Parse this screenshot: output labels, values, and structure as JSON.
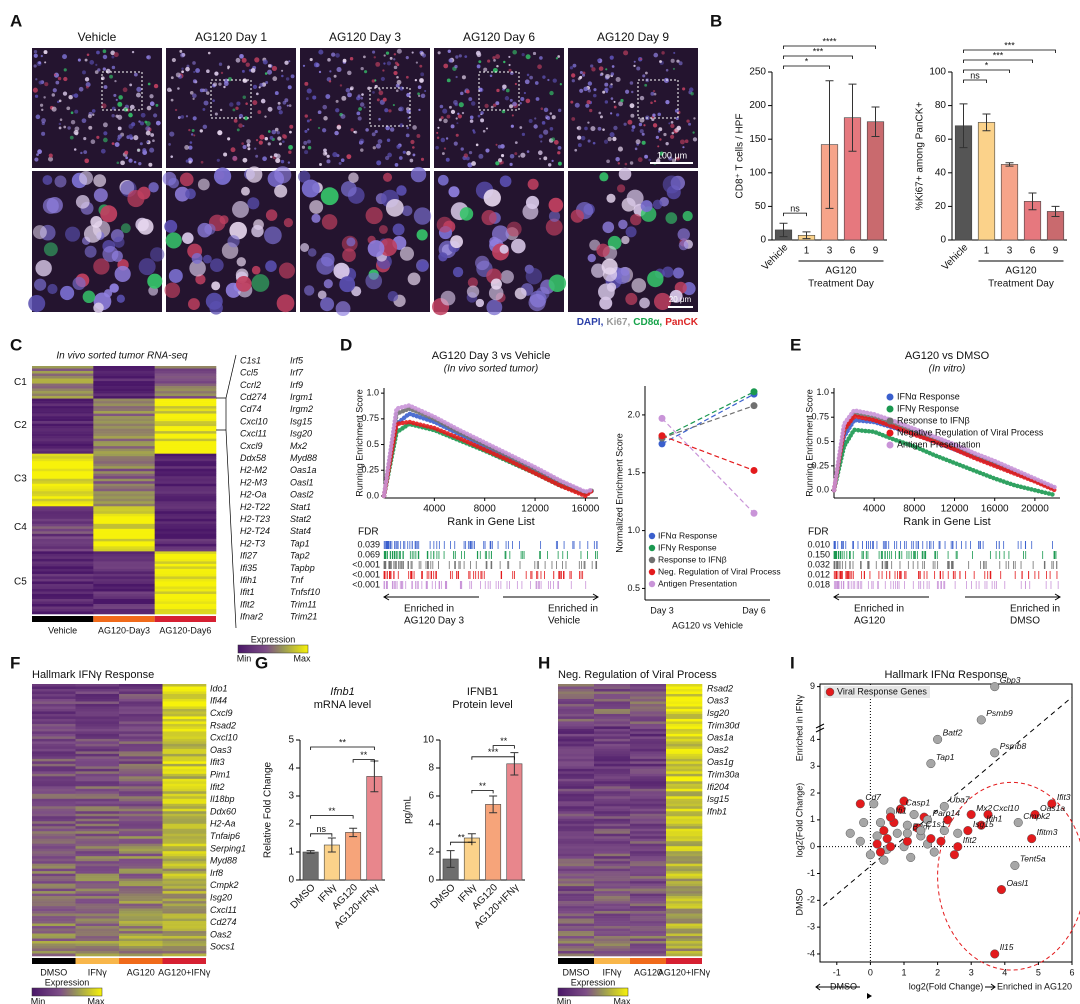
{
  "panel_labels": [
    "A",
    "B",
    "C",
    "D",
    "E",
    "F",
    "G",
    "H",
    "I"
  ],
  "microscopy": {
    "columns": [
      "Vehicle",
      "AG120 Day 1",
      "AG120 Day 3",
      "AG120 Day 6",
      "AG120 Day 9"
    ],
    "scale_top": "100 μm",
    "scale_bottom": "20 μm",
    "stains": [
      "DAPI,",
      "Ki67,",
      "CD8α,",
      "PanCK"
    ]
  },
  "heatmap_c": {
    "title": "In vivo sorted tumor RNA-seq",
    "clusters": [
      "C1",
      "C2",
      "C3",
      "C4",
      "C5"
    ],
    "genes_left": [
      "C1s1",
      "Ccl5",
      "Ccrl2",
      "Cd274",
      "Cd74",
      "Cxcl10",
      "Cxcl11",
      "Cxcl9",
      "Ddx58",
      "H2-M2",
      "H2-M3",
      "H2-Oa",
      "H2-T22",
      "H2-T23",
      "H2-T24",
      "H2-T3",
      "Ifi27",
      "Ifi35",
      "Ifih1",
      "Ifit1",
      "Ifit2",
      "Ifnar2"
    ],
    "genes_right": [
      "Irf5",
      "Irf7",
      "Irf9",
      "Irgm1",
      "Irgm2",
      "Isg15",
      "Isg20",
      "Mx2",
      "Myd88",
      "Oas1a",
      "Oasl1",
      "Oasl2",
      "Stat1",
      "Stat2",
      "Stat4",
      "Tap1",
      "Tap2",
      "Tapbp",
      "Tnf",
      "Tnfsf10",
      "Trim11",
      "Trim21"
    ],
    "columns": [
      "Vehicle",
      "AG120-Day3",
      "AG120-Day6"
    ],
    "legend": {
      "title": "Expression",
      "min": "Min",
      "max": "Max"
    }
  },
  "heatmap_f": {
    "title": "Hallmark IFNγ Response",
    "genes": [
      "Ido1",
      "Ifi44",
      "Cxcl9",
      "Rsad2",
      "Cxcl10",
      "Oas3",
      "Ifit3",
      "Pim1",
      "Ifit2",
      "Il18bp",
      "Ddx60",
      "H2-Aa",
      "Tnfaip6",
      "Serping1",
      "Myd88",
      "Irf8",
      "Cmpk2",
      "Isg20",
      "Cxcl11",
      "Cd274",
      "Oas2",
      "Socs1"
    ],
    "columns": [
      "DMSO",
      "IFNγ",
      "AG120",
      "AG120+IFNγ"
    ],
    "legend": {
      "title": "Expression",
      "min": "Min",
      "max": "Max"
    }
  },
  "heatmap_h": {
    "title": "Neg. Regulation of Viral Process",
    "genes": [
      "Rsad2",
      "Oas3",
      "Isg20",
      "Trim30d",
      "Oas1a",
      "Oas2",
      "Oas1g",
      "Trim30a",
      "Ifi204",
      "Isg15",
      "Ifnb1"
    ],
    "columns": [
      "DMSO",
      "IFNγ",
      "AG120",
      "AG120+IFNγ"
    ],
    "legend": {
      "title": "Expression",
      "min": "Min",
      "max": "Max"
    }
  },
  "chart_data": [
    {
      "type": "bar",
      "ylabel": "CD8⁺ T cells / HPF",
      "categories": [
        "Vehicle",
        "1",
        "3",
        "6",
        "9"
      ],
      "values": [
        15,
        7,
        142,
        182,
        176
      ],
      "errors": [
        10,
        5,
        95,
        50,
        22
      ],
      "colors": [
        "#555555",
        "#fbd28a",
        "#f6a48a",
        "#e6787e",
        "#c96a6e"
      ],
      "group_label": "AG120",
      "xlabel": "Treatment Day",
      "significance": [
        "ns",
        "*",
        "***",
        "****"
      ],
      "ylim": [
        0,
        250
      ],
      "yticks": [
        0,
        50,
        100,
        150,
        200,
        250
      ]
    },
    {
      "type": "bar",
      "ylabel": "%Ki67+ among PanCK+",
      "categories": [
        "Vehicle",
        "1",
        "3",
        "6",
        "9"
      ],
      "values": [
        68,
        70,
        45,
        23,
        17
      ],
      "errors": [
        13,
        5,
        1,
        5,
        3
      ],
      "colors": [
        "#555555",
        "#fbd28a",
        "#f6a48a",
        "#e6787e",
        "#c96a6e"
      ],
      "group_label": "AG120",
      "xlabel": "Treatment Day",
      "significance": [
        "ns",
        "*",
        "***",
        "***"
      ],
      "ylim": [
        0,
        100
      ],
      "yticks": [
        0,
        20,
        40,
        60,
        80,
        100
      ]
    },
    {
      "type": "gsea",
      "title": "AG120 Day 3 vs Vehicle",
      "subtitle": "(In vivo sorted tumor)",
      "ylabel": "Running Enrichment Score",
      "xlabel": "Rank in Gene List",
      "x": [
        0,
        1000,
        2000,
        4000,
        6000,
        8000,
        10000,
        12000,
        14000,
        16000,
        16500
      ],
      "series": [
        {
          "color": "#3a5fcd",
          "values": [
            0,
            0.7,
            0.8,
            0.72,
            0.6,
            0.48,
            0.37,
            0.25,
            0.12,
            0.03,
            0.05
          ]
        },
        {
          "color": "#1a9850",
          "values": [
            0,
            0.62,
            0.7,
            0.64,
            0.54,
            0.44,
            0.33,
            0.22,
            0.1,
            0.02,
            0.05
          ]
        },
        {
          "color": "#707070",
          "values": [
            0,
            0.8,
            0.85,
            0.75,
            0.62,
            0.5,
            0.38,
            0.26,
            0.14,
            0.03,
            0.05
          ]
        },
        {
          "color": "#e31a1c",
          "values": [
            0,
            0.7,
            0.72,
            0.66,
            0.56,
            0.45,
            0.34,
            0.22,
            0.1,
            0,
            0.05
          ]
        },
        {
          "color": "#c994d8",
          "values": [
            0,
            0.85,
            0.88,
            0.77,
            0.64,
            0.52,
            0.4,
            0.28,
            0.15,
            0.04,
            0.06
          ]
        }
      ],
      "xlim": [
        0,
        17000
      ],
      "ylim": [
        -0.02,
        1.05
      ],
      "xticks": [
        4000,
        8000,
        12000,
        16000
      ],
      "yticks": [
        {
          "value": 0,
          "label": "0.0"
        },
        0.25,
        0.5,
        0.75,
        {
          "value": 1,
          "label": "1.0"
        }
      ],
      "fdr_label": "FDR",
      "fdr": [
        "0.039",
        "0.069",
        "<0.001",
        "<0.001",
        "<0.001"
      ],
      "left_arrow": [
        "Enriched in",
        "AG120 Day 3"
      ],
      "right_arrow": [
        "Enriched in",
        "Vehicle"
      ]
    },
    {
      "type": "line",
      "ylabel": "Normalized Enrichment Score",
      "categories": [
        "Day 3",
        "Day 6"
      ],
      "xlabel": "AG120 vs Vehicle",
      "series": [
        {
          "name": "IFNα Response",
          "color": "#3a5fcd",
          "values": [
            1.75,
            2.18
          ]
        },
        {
          "name": "IFNγ Response",
          "color": "#1a9850",
          "values": [
            1.8,
            2.2
          ]
        },
        {
          "name": "Response to IFNβ",
          "color": "#707070",
          "values": [
            1.8,
            2.08
          ]
        },
        {
          "name": "Neg. Regulation of Viral Process",
          "color": "#e31a1c",
          "values": [
            1.82,
            1.52
          ]
        },
        {
          "name": "Antigen Presentation",
          "color": "#c994d8",
          "values": [
            1.97,
            1.15
          ]
        }
      ],
      "ylim": [
        0.4,
        2.25
      ],
      "yticks": [
        0.5,
        {
          "value": 1,
          "label": "1.0"
        },
        1.5,
        {
          "value": 2,
          "label": "2.0"
        }
      ]
    },
    {
      "type": "gsea",
      "title": "AG120 vs DMSO",
      "subtitle": "(In vitro)",
      "ylabel": "Running Enrichment Score",
      "xlabel": "Rank in Gene List",
      "x": [
        0,
        1000,
        2000,
        4000,
        6000,
        8000,
        10000,
        12000,
        14000,
        16000,
        18000,
        20000,
        22000
      ],
      "series": [
        {
          "name": "IFNα Response",
          "color": "#3a5fcd",
          "values": [
            0,
            0.55,
            0.72,
            0.7,
            0.64,
            0.58,
            0.5,
            0.42,
            0.34,
            0.26,
            0.18,
            0.1,
            0.02
          ]
        },
        {
          "name": "IFNγ Response",
          "color": "#1a9850",
          "values": [
            0,
            0.45,
            0.62,
            0.6,
            0.52,
            0.45,
            0.36,
            0.28,
            0.2,
            0.12,
            0.05,
            0,
            -0.05
          ]
        },
        {
          "name": "Response to IFNβ",
          "color": "#707070",
          "values": [
            0,
            0.6,
            0.78,
            0.74,
            0.67,
            0.6,
            0.52,
            0.44,
            0.35,
            0.27,
            0.19,
            0.1,
            0.01
          ]
        },
        {
          "name": "Negative Regulation of Viral Process",
          "color": "#e31a1c",
          "values": [
            0,
            0.62,
            0.76,
            0.72,
            0.65,
            0.57,
            0.5,
            0.42,
            0.33,
            0.25,
            0.17,
            0.09,
            0
          ]
        },
        {
          "name": "Antigen Presentation",
          "color": "#c994d8",
          "values": [
            0,
            0.68,
            0.82,
            0.78,
            0.71,
            0.63,
            0.55,
            0.47,
            0.38,
            0.3,
            0.21,
            0.12,
            0.03
          ]
        }
      ],
      "xlim": [
        0,
        22500
      ],
      "ylim": [
        -0.08,
        1.05
      ],
      "xticks": [
        4000,
        8000,
        12000,
        16000,
        20000
      ],
      "yticks": [
        {
          "value": 0,
          "label": "0.0"
        },
        0.25,
        0.5,
        0.75,
        {
          "value": 1,
          "label": "1.0"
        }
      ],
      "fdr_label": "FDR",
      "fdr": [
        "0.010",
        "0.150",
        "0.032",
        "0.012",
        "0.018"
      ],
      "left_arrow": [
        "Enriched in",
        "AG120"
      ],
      "right_arrow": [
        "Enriched in",
        "DMSO"
      ]
    },
    {
      "type": "bar",
      "title": [
        "Ifnb1",
        "mRNA level"
      ],
      "ylabel": "Relative Fold Change",
      "categories": [
        "DMSO",
        "IFNγ",
        "AG120",
        "AG120+IFNγ"
      ],
      "values": [
        1,
        1.25,
        1.7,
        3.7
      ],
      "errors": [
        0.05,
        0.25,
        0.15,
        0.55
      ],
      "colors": [
        "#6e6e6e",
        "#fbd28a",
        "#f6a47a",
        "#e8868c"
      ],
      "significance": [
        "ns",
        "**",
        "**",
        "**"
      ],
      "ylim": [
        0,
        5
      ],
      "yticks": [
        0,
        1,
        2,
        3,
        4,
        5
      ]
    },
    {
      "type": "bar",
      "title": [
        "IFNB1",
        "Protein level"
      ],
      "ylabel": "pg/mL",
      "categories": [
        "DMSO",
        "IFNγ",
        "AG120",
        "AG120+IFNγ"
      ],
      "values": [
        1.5,
        3,
        5.4,
        8.3
      ],
      "errors": [
        0.6,
        0.3,
        0.6,
        0.8
      ],
      "colors": [
        "#6e6e6e",
        "#fbd28a",
        "#f6a47a",
        "#e8868c"
      ],
      "significance": [
        "**",
        "**",
        "***",
        "**"
      ],
      "ylim": [
        0,
        10
      ],
      "yticks": [
        0,
        2,
        4,
        6,
        8,
        10
      ]
    },
    {
      "type": "scatter",
      "title": "Hallmark IFNα Response",
      "legend": "Viral Response Genes",
      "xlabel": "log2(Fold Change)",
      "ylabel": "log2(Fold Change)",
      "x_left": "DMSO",
      "x_right": "Enriched in AG120",
      "y_top": "Enriched in IFNγ",
      "y_bottom": "DMSO",
      "points": [
        {
          "x": -0.6,
          "y": 0.5,
          "color": "#a6a6a6"
        },
        {
          "x": -0.3,
          "y": 0.2,
          "color": "#a6a6a6"
        },
        {
          "x": 0,
          "y": -0.3,
          "color": "#a6a6a6"
        },
        {
          "x": 0.2,
          "y": 0.4,
          "color": "#a6a6a6"
        },
        {
          "x": 0.3,
          "y": 0.9,
          "color": "#a6a6a6"
        },
        {
          "x": 0.5,
          "y": -0.1,
          "color": "#a6a6a6"
        },
        {
          "x": 0.6,
          "y": 1.3,
          "color": "#a6a6a6"
        },
        {
          "x": 0.8,
          "y": 0.5,
          "color": "#a6a6a6"
        },
        {
          "x": 1,
          "y": 0,
          "color": "#a6a6a6"
        },
        {
          "x": 1.1,
          "y": 0.8,
          "color": "#a6a6a6"
        },
        {
          "x": 1.3,
          "y": 1.2,
          "color": "#a6a6a6"
        },
        {
          "x": 1.5,
          "y": 0.4,
          "color": "#a6a6a6"
        },
        {
          "x": 1.7,
          "y": 0.1,
          "color": "#a6a6a6"
        },
        {
          "x": 1.9,
          "y": -0.2,
          "color": "#a6a6a6"
        },
        {
          "x": 0.4,
          "y": -0.5,
          "color": "#a6a6a6"
        },
        {
          "x": 2.2,
          "y": 0.6,
          "color": "#a6a6a6"
        },
        {
          "x": 0.1,
          "y": 1.6,
          "color": "#a6a6a6"
        },
        {
          "x": -0.2,
          "y": 0.9,
          "color": "#a6a6a6"
        },
        {
          "x": 1.2,
          "y": -0.4,
          "color": "#a6a6a6"
        },
        {
          "x": 2.6,
          "y": 0.5,
          "color": "#a6a6a6"
        },
        {
          "x": 0.2,
          "y": 0.1,
          "color": "#e31a1c"
        },
        {
          "x": 0.4,
          "y": 0.6,
          "color": "#e31a1c"
        },
        {
          "x": 0.6,
          "y": 0,
          "color": "#e31a1c"
        },
        {
          "x": 0.7,
          "y": 0.9,
          "color": "#e31a1c"
        },
        {
          "x": 0.9,
          "y": 1.4,
          "color": "#e31a1c"
        },
        {
          "x": 1.1,
          "y": 0.2,
          "color": "#e31a1c"
        },
        {
          "x": 1.4,
          "y": 0.7,
          "color": "#e31a1c"
        },
        {
          "x": 1.6,
          "y": 1.1,
          "color": "#e31a1c"
        },
        {
          "x": 1.8,
          "y": 0.3,
          "color": "#e31a1c"
        },
        {
          "x": 2.1,
          "y": 0.2,
          "color": "#e31a1c"
        },
        {
          "x": 2.3,
          "y": 1,
          "color": "#e31a1c"
        },
        {
          "x": 2.5,
          "y": -0.3,
          "color": "#e31a1c"
        },
        {
          "x": 0.3,
          "y": -0.2,
          "color": "#e31a1c"
        },
        {
          "x": 1,
          "y": 1.7,
          "color": "#e31a1c"
        },
        {
          "x": 0.5,
          "y": 0.3,
          "color": "#e31a1c"
        },
        {
          "label": "Gbp3",
          "x": 3.7,
          "y": 9,
          "color": "#a6a6a6"
        },
        {
          "label": "Psmb9",
          "x": 3.3,
          "y": 5.2,
          "color": "#a6a6a6"
        },
        {
          "label": "Batf2",
          "x": 2,
          "y": 4,
          "color": "#a6a6a6"
        },
        {
          "label": "Tap1",
          "x": 1.8,
          "y": 3.1,
          "color": "#a6a6a6"
        },
        {
          "label": "Psmb8",
          "x": 3.7,
          "y": 3.5,
          "color": "#a6a6a6"
        },
        {
          "label": "Cd7",
          "x": -0.3,
          "y": 1.6,
          "color": "#e31a1c"
        },
        {
          "label": "Casp1",
          "x": 0.9,
          "y": 1.4,
          "color": "#e31a1c"
        },
        {
          "label": "Ifi1",
          "x": 0.6,
          "y": 1.1,
          "color": "#e31a1c"
        },
        {
          "label": "Parp14",
          "x": 1.7,
          "y": 1,
          "color": "#a6a6a6"
        },
        {
          "label": "Uba7",
          "x": 2.2,
          "y": 1.5,
          "color": "#a6a6a6"
        },
        {
          "label": "B2m",
          "x": 1.1,
          "y": 0.5,
          "color": "#a6a6a6"
        },
        {
          "label": "C1s1",
          "x": 1.5,
          "y": 0.6,
          "color": "#a6a6a6"
        },
        {
          "label": "Mx2",
          "x": 3,
          "y": 1.2,
          "color": "#e31a1c"
        },
        {
          "label": "Cxcl10",
          "x": 3.5,
          "y": 1.2,
          "color": "#e31a1c"
        },
        {
          "label": "Ifih1",
          "x": 3.3,
          "y": 0.8,
          "color": "#e31a1c"
        },
        {
          "label": "Isg15",
          "x": 2.9,
          "y": 0.6,
          "color": "#e31a1c"
        },
        {
          "label": "Ifit2",
          "x": 2.6,
          "y": 0,
          "color": "#e31a1c"
        },
        {
          "label": "Ifit3",
          "x": 5.4,
          "y": 1.6,
          "color": "#e31a1c"
        },
        {
          "label": "Oas1a",
          "x": 4.9,
          "y": 1.2,
          "color": "#e31a1c"
        },
        {
          "label": "Cmpk2",
          "x": 4.4,
          "y": 0.9,
          "color": "#a6a6a6"
        },
        {
          "label": "Ifitm3",
          "x": 4.8,
          "y": 0.3,
          "color": "#e31a1c"
        },
        {
          "label": "Tent5a",
          "x": 4.3,
          "y": -0.7,
          "color": "#a6a6a6"
        },
        {
          "label": "Oasl1",
          "x": 3.9,
          "y": -1.6,
          "color": "#e31a1c"
        },
        {
          "label": "Il15",
          "x": 3.7,
          "y": -4,
          "color": "#e31a1c"
        }
      ],
      "xlim": [
        -1.5,
        6
      ],
      "ylim": [
        -4.3,
        9.3
      ],
      "xticks": [
        -1,
        0,
        1,
        2,
        3,
        4,
        5,
        6
      ],
      "yticks": [
        -4,
        -3,
        -2,
        -1,
        0,
        1,
        2,
        3,
        4,
        9
      ]
    }
  ]
}
